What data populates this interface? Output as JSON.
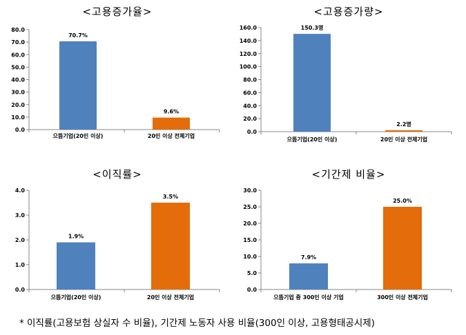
{
  "chart_data": [
    {
      "type": "bar",
      "title": "<고용증가율>",
      "categories": [
        "으뜸기업(20인 이상)",
        "20인 이상 전체기업"
      ],
      "values": [
        70.7,
        9.6
      ],
      "data_labels": [
        "70.7%",
        "9.6%"
      ],
      "yticks": [
        "0.0",
        "10.0",
        "20.0",
        "30.0",
        "40.0",
        "50.0",
        "60.0",
        "70.0",
        "80.0"
      ],
      "ylim": [
        0,
        80
      ],
      "colors": [
        "#4f81bd",
        "#e46c0a"
      ],
      "xlabel": "",
      "ylabel": "",
      "grid": false
    },
    {
      "type": "bar",
      "title": "<고용증가량>",
      "categories": [
        "으뜸기업(20인 이상)",
        "20인 이상 전체기업"
      ],
      "values": [
        150.3,
        2.2
      ],
      "data_labels": [
        "150.3명",
        "2.2명"
      ],
      "yticks": [
        "0.0",
        "20.0",
        "40.0",
        "60.0",
        "80.0",
        "100.0",
        "120.0",
        "140.0",
        "160.0"
      ],
      "ylim": [
        0,
        160
      ],
      "colors": [
        "#4f81bd",
        "#e46c0a"
      ],
      "xlabel": "",
      "ylabel": "",
      "grid": false
    },
    {
      "type": "bar",
      "title": "<이직률>",
      "categories": [
        "으뜸기업(20인 이상)",
        "20인 이상 전체기업"
      ],
      "values": [
        1.9,
        3.5
      ],
      "data_labels": [
        "1.9%",
        "3.5%"
      ],
      "yticks": [
        "0.0",
        "1.0",
        "2.0",
        "3.0",
        "4.0"
      ],
      "ylim": [
        0,
        4
      ],
      "colors": [
        "#4f81bd",
        "#e46c0a"
      ],
      "xlabel": "",
      "ylabel": "",
      "grid": false
    },
    {
      "type": "bar",
      "title": "<기간제 비율>",
      "categories": [
        "으뜸기업 중 300인 이상 기업",
        "300인 이상 전체기업"
      ],
      "values": [
        7.9,
        25.0
      ],
      "data_labels": [
        "7.9%",
        "25.0%"
      ],
      "yticks": [
        "0.0",
        "5.0",
        "10.0",
        "15.0",
        "20.0",
        "25.0",
        "30.0"
      ],
      "ylim": [
        0,
        30
      ],
      "colors": [
        "#4f81bd",
        "#e46c0a"
      ],
      "xlabel": "",
      "ylabel": "",
      "grid": false
    }
  ],
  "footnote": "* 이직률(고용보험 상실자 수 비율), 기간제 노동자 사용 비율(300인 이상, 고용형태공시제)"
}
